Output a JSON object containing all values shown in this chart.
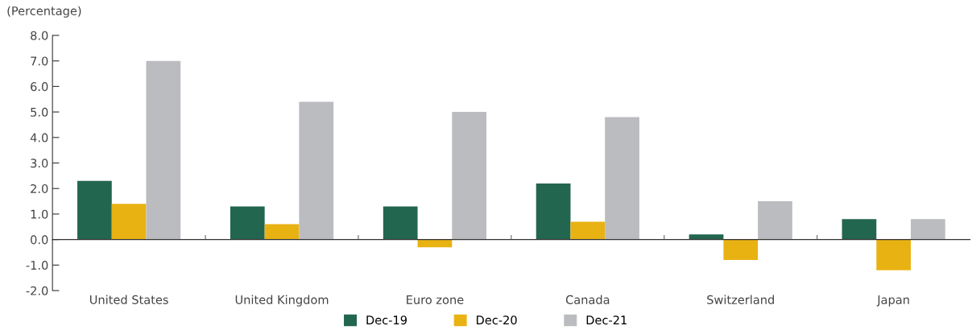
{
  "chart_data": {
    "type": "bar",
    "ylabel": "(Percentage)",
    "categories": [
      "United States",
      "United Kingdom",
      "Euro zone",
      "Canada",
      "Switzerland",
      "Japan"
    ],
    "series": [
      {
        "name": "Dec-19",
        "color": "#236650",
        "values": [
          2.3,
          1.3,
          1.3,
          2.2,
          0.2,
          0.8
        ]
      },
      {
        "name": "Dec-20",
        "color": "#e9b213",
        "values": [
          1.4,
          0.6,
          -0.3,
          0.7,
          -0.8,
          -1.2
        ]
      },
      {
        "name": "Dec-21",
        "color": "#bbbcbf",
        "values": [
          7.0,
          5.4,
          5.0,
          4.8,
          1.5,
          0.8
        ]
      }
    ],
    "ylim": [
      -2,
      8
    ],
    "yticks": [
      {
        "value": -2,
        "label": "-2.0"
      },
      {
        "value": -1,
        "label": "-1.0"
      },
      {
        "value": 0,
        "label": "0.0"
      },
      {
        "value": 1,
        "label": "1.0"
      },
      {
        "value": 2,
        "label": "2.0"
      },
      {
        "value": 3,
        "label": "3.0"
      },
      {
        "value": 4,
        "label": "4.0"
      },
      {
        "value": 5,
        "label": "5.0"
      },
      {
        "value": 6,
        "label": "6.0"
      },
      {
        "value": 7,
        "label": "7.0"
      },
      {
        "value": 8,
        "label": "8.0"
      }
    ],
    "legend": "bottom"
  }
}
